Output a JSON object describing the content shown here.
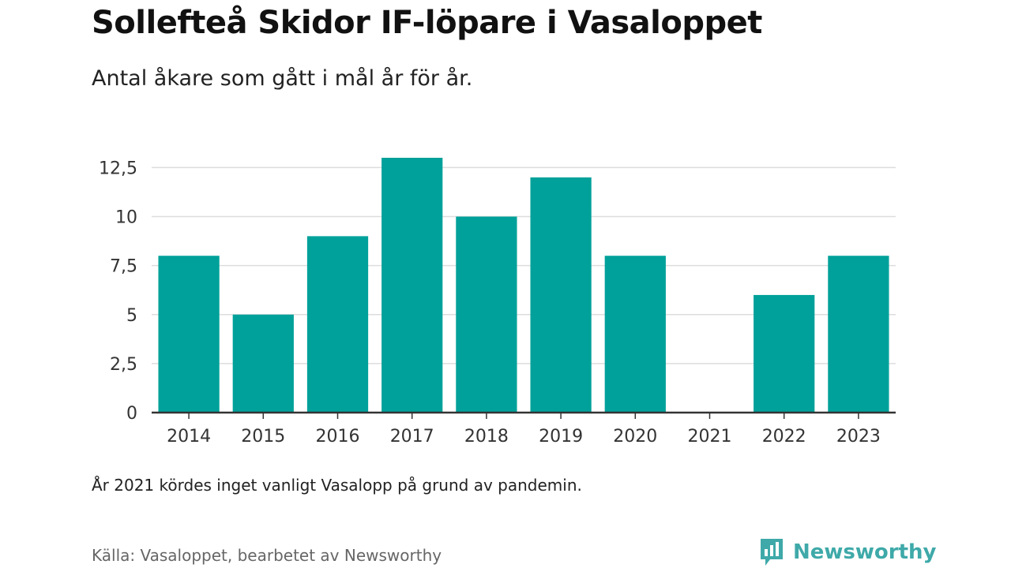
{
  "header": {
    "title": "Sollefteå Skidor IF-löpare i Vasaloppet",
    "subtitle": "Antal åkare som gått i mål år för år."
  },
  "footer": {
    "note": "År 2021 kördes inget vanligt Vasalopp på grund av pandemin.",
    "source": "Källa: Vasaloppet, bearbetet av Newsworthy",
    "brand": "Newsworthy"
  },
  "colors": {
    "bar": "#00a19a",
    "grid": "#dddddd",
    "axis": "#333333",
    "brand": "#3fa9a9"
  },
  "chart_data": {
    "type": "bar",
    "title": "Sollefteå Skidor IF-löpare i Vasaloppet",
    "subtitle": "Antal åkare som gått i mål år för år.",
    "categories": [
      "2014",
      "2015",
      "2016",
      "2017",
      "2018",
      "2019",
      "2020",
      "2021",
      "2022",
      "2023"
    ],
    "values": [
      8,
      5,
      9,
      13,
      10,
      12,
      8,
      0,
      6,
      8
    ],
    "ylim": [
      0,
      13
    ],
    "yticks": [
      0,
      2.5,
      5,
      7.5,
      10,
      12.5
    ],
    "ytick_labels": [
      "0",
      "2,5",
      "5",
      "7,5",
      "10",
      "12,5"
    ],
    "grid": true,
    "legend": "none"
  }
}
